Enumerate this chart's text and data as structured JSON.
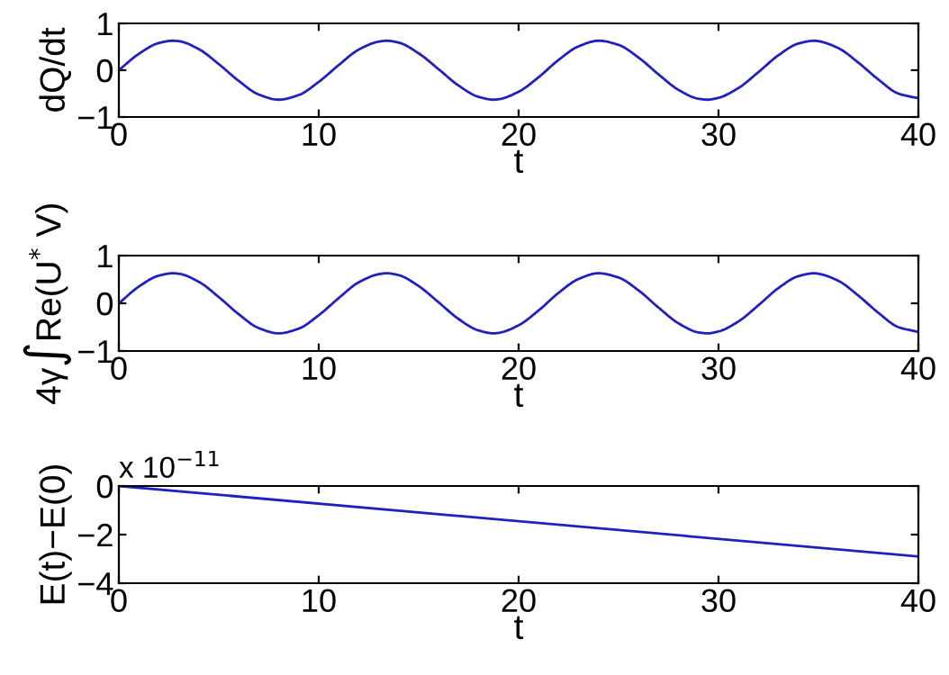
{
  "chart_data": [
    {
      "type": "line",
      "xlabel": "t",
      "ylabel": "dQ/dt",
      "x": [
        0,
        1,
        2,
        2.7,
        3,
        4,
        5,
        6,
        7,
        8,
        9,
        10,
        11,
        12,
        13,
        13.4,
        14,
        15,
        16,
        17,
        18,
        18.75,
        19,
        20,
        21,
        22,
        23,
        24,
        25,
        26,
        27,
        28,
        29,
        29.45,
        30,
        31,
        32,
        33,
        34,
        34.8,
        35,
        36,
        37,
        38,
        39,
        40
      ],
      "series": [
        {
          "color": "#2020c0",
          "values": [
            0,
            0.35,
            0.58,
            0.63,
            0.62,
            0.45,
            0.13,
            -0.23,
            -0.52,
            -0.63,
            -0.53,
            -0.25,
            0.11,
            0.44,
            0.61,
            0.63,
            0.59,
            0.36,
            0.02,
            -0.33,
            -0.57,
            -0.63,
            -0.62,
            -0.46,
            -0.15,
            0.22,
            0.51,
            0.63,
            0.54,
            0.27,
            -0.09,
            -0.42,
            -0.61,
            -0.63,
            -0.59,
            -0.38,
            -0.04,
            0.32,
            0.57,
            0.63,
            0.62,
            0.47,
            0.16,
            -0.2,
            -0.5,
            -0.6
          ]
        }
      ],
      "xlim": [
        0,
        40
      ],
      "ylim": [
        -1,
        1
      ],
      "xticks": [
        0,
        10,
        20,
        30,
        40
      ],
      "yticks": [
        -1,
        0,
        1
      ]
    },
    {
      "type": "line",
      "xlabel": "t",
      "ylabel": "4γ∫Re(U$^{*}$ V)",
      "x": [
        0,
        1,
        2,
        2.7,
        3,
        4,
        5,
        6,
        7,
        8,
        9,
        10,
        11,
        12,
        13,
        13.4,
        14,
        15,
        16,
        17,
        18,
        18.75,
        19,
        20,
        21,
        22,
        23,
        24,
        25,
        26,
        27,
        28,
        29,
        29.45,
        30,
        31,
        32,
        33,
        34,
        34.8,
        35,
        36,
        37,
        38,
        39,
        40
      ],
      "series": [
        {
          "color": "#2020c0",
          "values": [
            0,
            0.35,
            0.58,
            0.63,
            0.62,
            0.45,
            0.13,
            -0.23,
            -0.52,
            -0.63,
            -0.53,
            -0.25,
            0.11,
            0.44,
            0.61,
            0.63,
            0.59,
            0.36,
            0.02,
            -0.33,
            -0.57,
            -0.63,
            -0.62,
            -0.46,
            -0.15,
            0.22,
            0.51,
            0.63,
            0.54,
            0.27,
            -0.09,
            -0.42,
            -0.61,
            -0.63,
            -0.59,
            -0.38,
            -0.04,
            0.32,
            0.57,
            0.63,
            0.62,
            0.47,
            0.16,
            -0.2,
            -0.5,
            -0.6
          ]
        }
      ],
      "xlim": [
        0,
        40
      ],
      "ylim": [
        -1,
        1
      ],
      "xticks": [
        0,
        10,
        20,
        30,
        40
      ],
      "yticks": [
        -1,
        0,
        1
      ]
    },
    {
      "type": "line",
      "xlabel": "t",
      "ylabel": "E(t)−E(0)",
      "annotations": [
        "x 10$^{−11}$"
      ],
      "x": [
        0,
        40
      ],
      "series": [
        {
          "color": "#2020c0",
          "values": [
            0,
            -2.9
          ]
        }
      ],
      "xlim": [
        0,
        40
      ],
      "ylim": [
        -4,
        0
      ],
      "xticks": [
        0,
        10,
        20,
        30,
        40
      ],
      "yticks": [
        -4,
        -2,
        0
      ]
    }
  ]
}
